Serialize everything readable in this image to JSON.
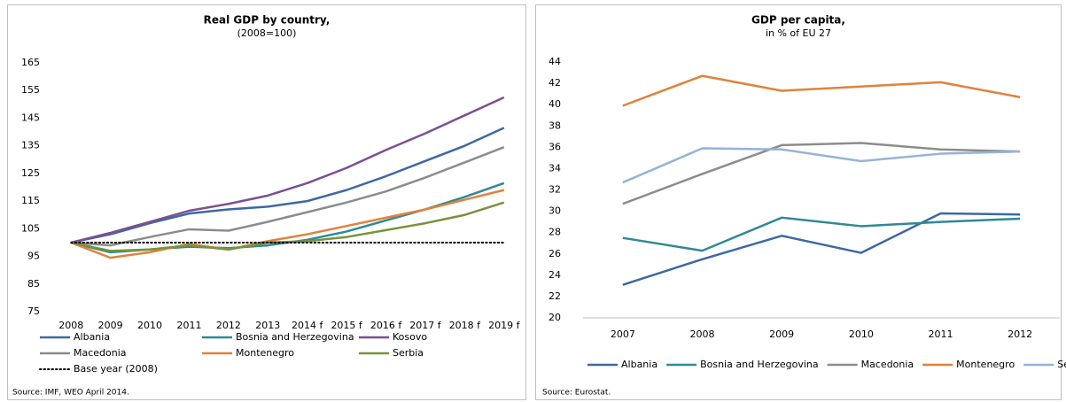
{
  "chart_data": [
    {
      "type": "line",
      "title": "Real GDP by country,",
      "subtitle": "(2008=100)",
      "categories": [
        "2008",
        "2009",
        "2010",
        "2011",
        "2012",
        "2013",
        "2014 f",
        "2015 f",
        "2016 f",
        "2017 f",
        "2018 f",
        "2019 f"
      ],
      "ylim": [
        75,
        165
      ],
      "yticks": [
        75,
        85,
        95,
        105,
        115,
        125,
        135,
        145,
        155,
        165
      ],
      "grid": false,
      "series": [
        {
          "name": "Albania",
          "color": "#3e68a4",
          "values": [
            100,
            103,
            107,
            110.5,
            112,
            113,
            115,
            119,
            124,
            129.5,
            135,
            141.5
          ]
        },
        {
          "name": "Bosnia and Herzegovina",
          "color": "#2f8995",
          "values": [
            100,
            96.5,
            97.5,
            98.5,
            98,
            99,
            101,
            104,
            108,
            112,
            116.5,
            121.5
          ]
        },
        {
          "name": "Kosovo",
          "color": "#7b4f92",
          "values": [
            100,
            103.5,
            107.5,
            111.5,
            114,
            117,
            121.5,
            127,
            133.5,
            139.5,
            146,
            152.5
          ]
        },
        {
          "name": "Macedonia",
          "color": "#8c8c8c",
          "values": [
            100,
            99,
            102,
            104.8,
            104.3,
            107.5,
            111,
            114.5,
            118.5,
            123.5,
            129,
            134.5
          ]
        },
        {
          "name": "Montenegro",
          "color": "#e0823a",
          "values": [
            100,
            94.5,
            96.5,
            99.5,
            97.5,
            100.5,
            103,
            106,
            109,
            112,
            115.5,
            119
          ]
        },
        {
          "name": "Serbia",
          "color": "#77933c",
          "values": [
            100,
            97,
            97.5,
            99,
            97.5,
            100,
            100.5,
            102,
            104.5,
            107,
            110,
            114.5
          ]
        },
        {
          "name": "Base year (2008)",
          "color": "#000000",
          "style": "dotted",
          "values": [
            100,
            100,
            100,
            100,
            100,
            100,
            100,
            100,
            100,
            100,
            100,
            100
          ]
        }
      ],
      "source": "Source: IMF, WEO April 2014."
    },
    {
      "type": "line",
      "title": "GDP per capita,",
      "subtitle": "in % of EU 27",
      "categories": [
        "2007",
        "2008",
        "2009",
        "2010",
        "2011",
        "2012"
      ],
      "ylim": [
        20,
        44
      ],
      "yticks": [
        20,
        22,
        24,
        26,
        28,
        30,
        32,
        34,
        36,
        38,
        40,
        42,
        44
      ],
      "grid": false,
      "series": [
        {
          "name": "Albania",
          "color": "#3e68a4",
          "values": [
            23.1,
            25.5,
            27.7,
            26.1,
            29.8,
            29.7
          ]
        },
        {
          "name": "Bosnia and Herzegovina",
          "color": "#2f8995",
          "values": [
            27.5,
            26.3,
            29.4,
            28.6,
            29.0,
            29.3
          ]
        },
        {
          "name": "Macedonia",
          "color": "#8c8c8c",
          "values": [
            30.7,
            33.5,
            36.2,
            36.4,
            35.8,
            35.6
          ]
        },
        {
          "name": "Montenegro",
          "color": "#e0823a",
          "values": [
            39.9,
            42.7,
            41.3,
            41.7,
            42.1,
            40.7
          ]
        },
        {
          "name": "Serbia",
          "color": "#95b3d7",
          "values": [
            32.7,
            35.9,
            35.8,
            34.7,
            35.4,
            35.6
          ]
        }
      ],
      "source": "Source: Eurostat."
    }
  ]
}
